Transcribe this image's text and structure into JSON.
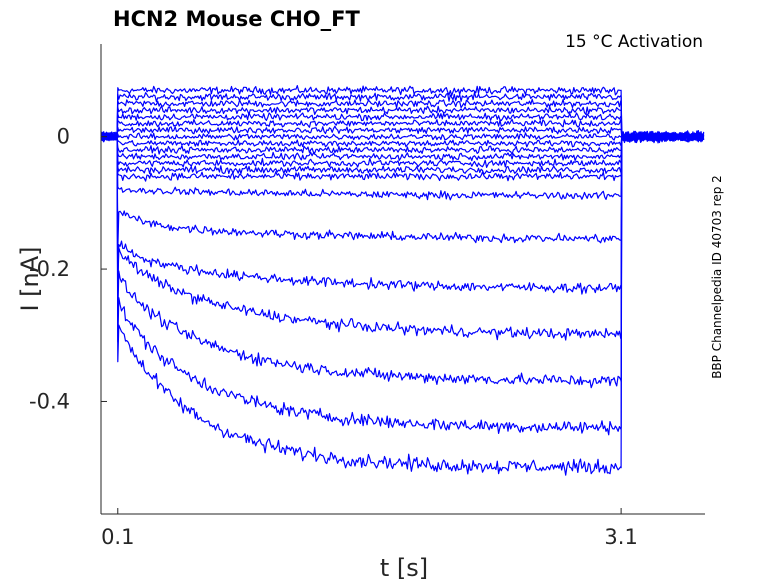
{
  "chart_data": {
    "type": "line",
    "title": "HCN2  Mouse  CHO_FT",
    "annotation": "15 °C  Activation",
    "side_note": "BBP Channelpedia ID 40703 rep 2",
    "xlabel": "t [s]",
    "ylabel": "I [nA]",
    "xlim": [
      0.0,
      3.6
    ],
    "ylim": [
      -0.57,
      0.14
    ],
    "x_ticks": [
      0.1,
      3.1
    ],
    "x_tick_labels": [
      "0.1",
      "3.1"
    ],
    "y_ticks": [
      0,
      -0.2,
      -0.4
    ],
    "y_tick_labels": [
      "0",
      "-0.2",
      "-0.4"
    ],
    "grid": false,
    "line_color": "#0000ff",
    "pulse_start": 0.1,
    "pulse_end": 3.1,
    "holding_current": 0.0,
    "series_steady_state": [
      0.07,
      0.06,
      0.05,
      0.04,
      0.03,
      0.02,
      0.01,
      0.0,
      -0.01,
      -0.02,
      -0.03,
      -0.04,
      -0.05,
      -0.06,
      -0.09,
      -0.155,
      -0.23,
      -0.3,
      -0.37,
      -0.44,
      -0.5
    ],
    "series_initial": [
      0.07,
      0.06,
      0.05,
      0.04,
      0.03,
      0.02,
      0.01,
      0.0,
      -0.01,
      -0.02,
      -0.03,
      -0.04,
      -0.05,
      -0.06,
      -0.08,
      -0.13,
      -0.18,
      -0.19,
      -0.23,
      -0.27,
      -0.3
    ],
    "series_time_constant": [
      1,
      1,
      1,
      1,
      1,
      1,
      1,
      1,
      1,
      1,
      1,
      1,
      1,
      1,
      1.2,
      0.9,
      0.8,
      0.7,
      0.6,
      0.55,
      0.5
    ]
  }
}
